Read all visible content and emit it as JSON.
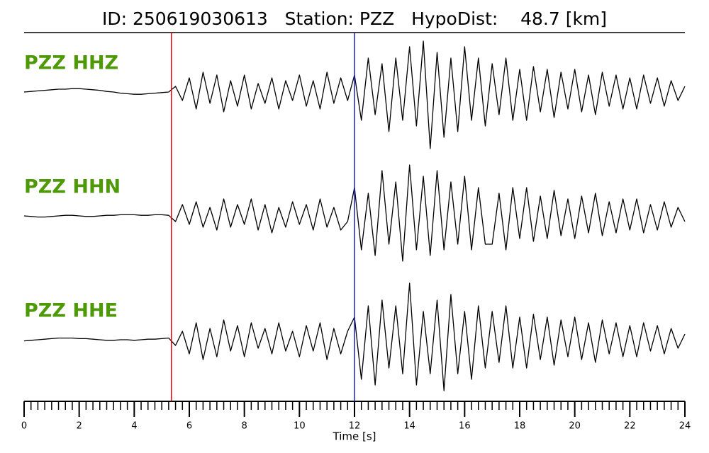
{
  "chart_data": {
    "type": "seismogram",
    "title": "ID: 250619030613   Station: PZZ   HypoDist:    48.7 [km]",
    "xlabel": "Time [s]",
    "xlim": [
      0,
      24
    ],
    "xticks": [
      0,
      2,
      4,
      6,
      8,
      10,
      12,
      14,
      16,
      18,
      20,
      22,
      24
    ],
    "ylim": [
      -1,
      1
    ],
    "label_color": "#4d9a06",
    "markers": [
      {
        "x": 5.35,
        "color": "#e8000b"
      },
      {
        "x": 12.0,
        "color": "#1f1fbf"
      }
    ],
    "x": [
      0,
      0.25,
      0.5,
      0.75,
      1,
      1.25,
      1.5,
      1.75,
      2,
      2.25,
      2.5,
      2.75,
      3,
      3.25,
      3.5,
      3.75,
      4,
      4.25,
      4.5,
      4.75,
      5,
      5.25,
      5.5,
      5.75,
      6,
      6.25,
      6.5,
      6.75,
      7,
      7.25,
      7.5,
      7.75,
      8,
      8.25,
      8.5,
      8.75,
      9,
      9.25,
      9.5,
      9.75,
      10,
      10.25,
      10.5,
      10.75,
      11,
      11.25,
      11.5,
      11.75,
      12,
      12.25,
      12.5,
      12.75,
      13,
      13.25,
      13.5,
      13.75,
      14,
      14.25,
      14.5,
      14.75,
      15,
      15.25,
      15.5,
      15.75,
      16,
      16.25,
      16.5,
      16.75,
      17,
      17.25,
      17.5,
      17.75,
      18,
      18.25,
      18.5,
      18.75,
      19,
      19.25,
      19.5,
      19.75,
      20,
      20.25,
      20.5,
      20.75,
      21,
      21.25,
      21.5,
      21.75,
      22,
      22.25,
      22.5,
      22.75,
      23,
      23.25,
      23.5,
      23.75,
      24
    ],
    "series": [
      {
        "name": "PZZ HHZ",
        "color": "#000000",
        "values": [
          0,
          0.01,
          0.02,
          0.03,
          0.04,
          0.05,
          0.05,
          0.06,
          0.06,
          0.05,
          0.04,
          0.03,
          0.01,
          0,
          -0.02,
          -0.03,
          -0.04,
          -0.04,
          -0.03,
          -0.02,
          -0.01,
          0.0,
          0.1,
          -0.15,
          0.25,
          -0.3,
          0.35,
          -0.2,
          0.3,
          -0.35,
          0.2,
          -0.25,
          0.3,
          -0.3,
          0.15,
          -0.2,
          0.25,
          -0.3,
          0.2,
          -0.15,
          0.3,
          -0.25,
          0.2,
          -0.3,
          0.35,
          -0.2,
          0.25,
          -0.15,
          0.3,
          -0.5,
          0.6,
          -0.4,
          0.5,
          -0.7,
          0.6,
          -0.5,
          0.8,
          -0.6,
          0.9,
          -1.0,
          0.7,
          -0.8,
          0.6,
          -0.7,
          0.8,
          -0.5,
          0.6,
          -0.6,
          0.5,
          -0.4,
          0.6,
          -0.5,
          0.4,
          -0.5,
          0.45,
          -0.35,
          0.4,
          -0.45,
          0.35,
          -0.3,
          0.4,
          -0.35,
          0.3,
          -0.4,
          0.35,
          -0.25,
          0.3,
          -0.3,
          0.25,
          -0.3,
          0.3,
          -0.2,
          0.25,
          -0.25,
          0.2,
          -0.15,
          0.1
        ]
      },
      {
        "name": "PZZ HHN",
        "color": "#000000",
        "values": [
          0,
          -0.01,
          -0.02,
          -0.02,
          -0.01,
          0,
          0.01,
          0.01,
          0,
          -0.01,
          -0.01,
          0,
          0.01,
          0.01,
          0.02,
          0.02,
          0.02,
          0.01,
          0.01,
          0.02,
          0.02,
          0.01,
          -0.1,
          0.2,
          -0.15,
          0.25,
          -0.2,
          0.15,
          -0.25,
          0.3,
          -0.2,
          0.2,
          -0.15,
          0.3,
          -0.25,
          0.2,
          -0.3,
          0.15,
          -0.2,
          0.25,
          -0.15,
          0.2,
          -0.25,
          0.3,
          -0.2,
          0.15,
          -0.25,
          -0.1,
          0.5,
          -0.6,
          0.4,
          -0.7,
          0.8,
          -0.5,
          0.6,
          -0.8,
          0.9,
          -0.6,
          0.7,
          -0.7,
          0.8,
          -0.6,
          0.6,
          -0.5,
          0.7,
          -0.6,
          0.5,
          -0.5,
          -0.5,
          0.4,
          -0.6,
          0.5,
          -0.4,
          0.5,
          -0.45,
          0.35,
          -0.4,
          0.45,
          -0.35,
          0.3,
          -0.4,
          0.35,
          -0.3,
          0.4,
          -0.35,
          0.25,
          -0.3,
          0.3,
          -0.25,
          0.3,
          -0.3,
          0.2,
          -0.25,
          0.25,
          -0.2,
          0.15,
          -0.1
        ]
      },
      {
        "name": "PZZ HHE",
        "color": "#000000",
        "values": [
          -0.02,
          -0.01,
          0,
          0.01,
          0.02,
          0.03,
          0.03,
          0.03,
          0.02,
          0.02,
          0.01,
          0,
          -0.01,
          -0.01,
          0,
          0,
          -0.01,
          0,
          0.01,
          0.01,
          0.02,
          0.03,
          -0.1,
          0.15,
          -0.25,
          0.3,
          -0.35,
          0.2,
          -0.3,
          0.35,
          -0.2,
          0.25,
          -0.3,
          0.3,
          -0.15,
          0.2,
          -0.25,
          0.3,
          -0.2,
          0.15,
          -0.3,
          0.25,
          -0.2,
          0.3,
          -0.35,
          0.2,
          -0.25,
          0.15,
          0.4,
          -0.7,
          0.6,
          -0.8,
          0.7,
          -0.5,
          0.6,
          -0.6,
          1.0,
          -0.8,
          0.5,
          -0.6,
          0.7,
          -0.9,
          0.8,
          -0.6,
          0.5,
          -0.7,
          0.6,
          -0.5,
          0.5,
          -0.4,
          0.6,
          -0.5,
          0.4,
          -0.5,
          0.45,
          -0.35,
          0.4,
          -0.45,
          0.35,
          -0.3,
          0.4,
          -0.35,
          0.3,
          -0.4,
          0.35,
          -0.25,
          0.3,
          -0.3,
          0.25,
          -0.3,
          0.3,
          -0.2,
          0.25,
          -0.25,
          0.2,
          -0.15,
          0.1
        ]
      }
    ]
  }
}
